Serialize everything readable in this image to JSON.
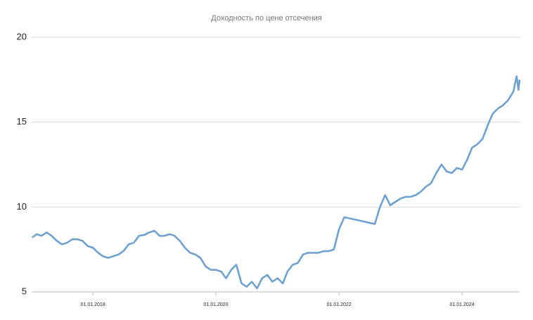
{
  "chart_data": {
    "type": "line",
    "title": "Доходность по цене отсечения",
    "x": [
      "2017-01-05",
      "2017-02-01",
      "2017-03-01",
      "2017-04-01",
      "2017-05-01",
      "2017-06-01",
      "2017-07-01",
      "2017-08-01",
      "2017-09-01",
      "2017-10-01",
      "2017-11-01",
      "2017-12-01",
      "2018-01-01",
      "2018-02-01",
      "2018-03-01",
      "2018-04-01",
      "2018-05-01",
      "2018-06-01",
      "2018-07-01",
      "2018-08-01",
      "2018-09-01",
      "2018-10-01",
      "2018-11-01",
      "2018-12-01",
      "2019-01-01",
      "2019-02-01",
      "2019-03-01",
      "2019-04-01",
      "2019-05-01",
      "2019-06-01",
      "2019-07-01",
      "2019-08-01",
      "2019-09-01",
      "2019-10-01",
      "2019-11-01",
      "2019-12-01",
      "2020-01-01",
      "2020-02-01",
      "2020-03-01",
      "2020-04-01",
      "2020-05-01",
      "2020-06-01",
      "2020-07-01",
      "2020-08-01",
      "2020-09-01",
      "2020-10-01",
      "2020-11-01",
      "2020-12-01",
      "2021-01-01",
      "2021-02-01",
      "2021-03-01",
      "2021-04-01",
      "2021-05-01",
      "2021-06-01",
      "2021-07-01",
      "2021-08-01",
      "2021-09-01",
      "2021-10-01",
      "2021-11-01",
      "2021-12-01",
      "2022-01-01",
      "2022-02-01",
      "2022-08-01",
      "2022-09-01",
      "2022-10-01",
      "2022-11-01",
      "2022-12-01",
      "2023-01-01",
      "2023-02-01",
      "2023-03-01",
      "2023-04-01",
      "2023-05-01",
      "2023-06-01",
      "2023-07-01",
      "2023-08-01",
      "2023-09-01",
      "2023-10-01",
      "2023-11-01",
      "2023-12-01",
      "2024-01-01",
      "2024-02-01",
      "2024-03-01",
      "2024-04-01",
      "2024-05-01",
      "2024-06-01",
      "2024-07-01",
      "2024-08-01",
      "2024-09-01",
      "2024-10-01",
      "2024-11-01",
      "2024-11-20",
      "2024-12-01",
      "2024-12-08"
    ],
    "series": [
      {
        "name": "Доходность",
        "color": "#6a9fd0",
        "values": [
          8.2,
          8.4,
          8.3,
          8.5,
          8.3,
          8.0,
          7.8,
          7.9,
          8.1,
          8.1,
          8.0,
          7.7,
          7.6,
          7.3,
          7.1,
          7.0,
          7.1,
          7.2,
          7.4,
          7.8,
          7.9,
          8.3,
          8.35,
          8.5,
          8.6,
          8.3,
          8.3,
          8.4,
          8.3,
          8.0,
          7.6,
          7.3,
          7.2,
          7.0,
          6.5,
          6.3,
          6.3,
          6.2,
          5.8,
          6.3,
          6.6,
          5.5,
          5.3,
          5.6,
          5.2,
          5.8,
          6.0,
          5.6,
          5.8,
          5.5,
          6.2,
          6.6,
          6.7,
          7.2,
          7.3,
          7.3,
          7.3,
          7.4,
          7.4,
          7.5,
          8.7,
          9.4,
          9.0,
          10.0,
          10.7,
          10.1,
          10.3,
          10.5,
          10.6,
          10.6,
          10.7,
          10.9,
          11.2,
          11.4,
          12.0,
          12.5,
          12.1,
          12.0,
          12.3,
          12.2,
          12.8,
          13.5,
          13.7,
          14.0,
          14.8,
          15.5,
          15.8,
          16.0,
          16.3,
          16.8,
          17.7,
          16.9,
          17.5
        ]
      }
    ],
    "xlim": [
      "2017-01-02",
      "2024-12-08"
    ],
    "xticks": [
      {
        "value": "2018-01-01",
        "label": "01.01.2018"
      },
      {
        "value": "2020-01-01",
        "label": "01.01.2020"
      },
      {
        "value": "2022-01-01",
        "label": "01.01.2022"
      },
      {
        "value": "2024-01-01",
        "label": "01.01.2024"
      }
    ],
    "ylim": [
      5,
      20
    ],
    "yticks": [
      5,
      10,
      15,
      20
    ],
    "grid": true
  }
}
